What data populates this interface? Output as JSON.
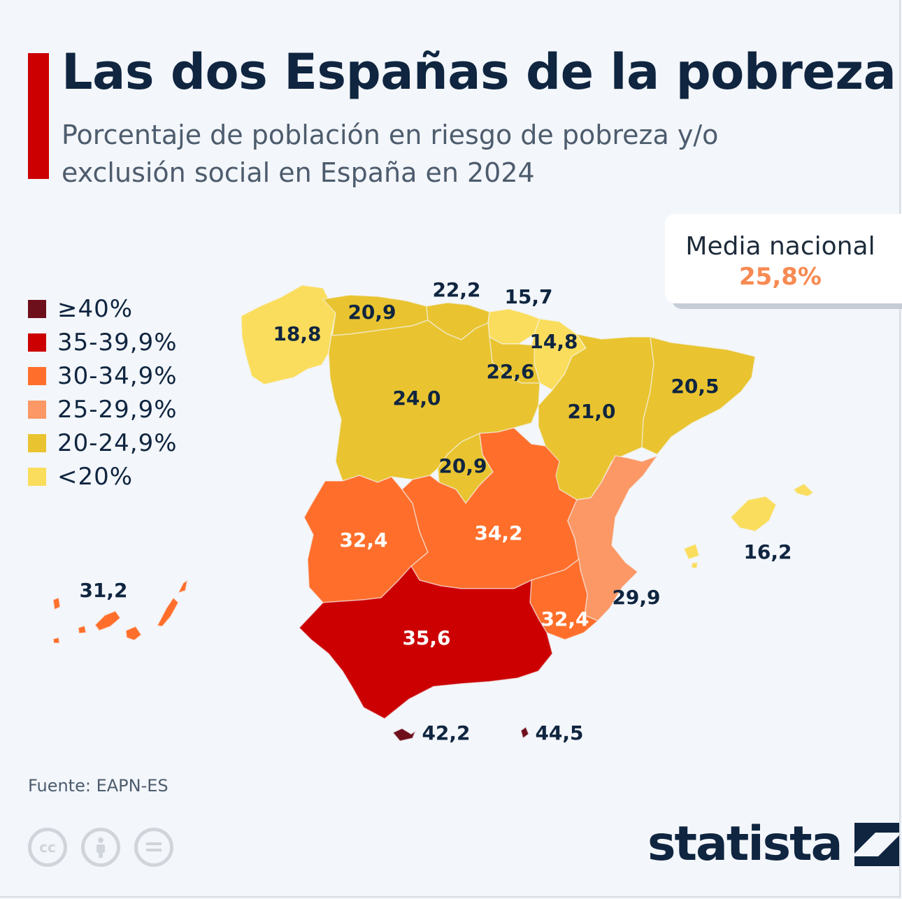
{
  "header": {
    "title": "Las dos Españas de la pobreza",
    "subtitle": "Porcentaje de población en riesgo de pobreza y/o exclusión social en España en 2024"
  },
  "national_mean": {
    "label": "Media nacional",
    "value": "25,8%"
  },
  "legend": [
    {
      "label": "≥40%",
      "color": "#6e0f1c"
    },
    {
      "label": "35-39,9%",
      "color": "#cc0000"
    },
    {
      "label": "30-34,9%",
      "color": "#ff6f2b"
    },
    {
      "label": "25-29,9%",
      "color": "#fb9865"
    },
    {
      "label": "20-24,9%",
      "color": "#e9c430"
    },
    {
      "label": "<20%",
      "color": "#fadd5c"
    }
  ],
  "regions": [
    {
      "value": "18,8",
      "label_color": "dark"
    },
    {
      "value": "20,9",
      "label_color": "dark"
    },
    {
      "value": "22,2",
      "label_color": "dark"
    },
    {
      "value": "15,7",
      "label_color": "dark"
    },
    {
      "value": "14,8",
      "label_color": "dark"
    },
    {
      "value": "22,6",
      "label_color": "dark"
    },
    {
      "value": "24,0",
      "label_color": "dark"
    },
    {
      "value": "21,0",
      "label_color": "dark"
    },
    {
      "value": "20,5",
      "label_color": "dark"
    },
    {
      "value": "20,9",
      "label_color": "dark"
    },
    {
      "value": "32,4",
      "label_color": "light"
    },
    {
      "value": "34,2",
      "label_color": "light"
    },
    {
      "value": "29,9",
      "label_color": "dark"
    },
    {
      "value": "16,2",
      "label_color": "dark"
    },
    {
      "value": "32,4",
      "label_color": "light"
    },
    {
      "value": "35,6",
      "label_color": "light"
    },
    {
      "value": "31,2",
      "label_color": "dark"
    },
    {
      "value": "42,2",
      "label_color": "dark"
    },
    {
      "value": "44,5",
      "label_color": "dark"
    }
  ],
  "footer": {
    "source": "Fuente: EAPN-ES",
    "brand": "statista"
  },
  "license_icons": [
    "cc-icon",
    "attribution-icon",
    "no-derivatives-icon"
  ]
}
